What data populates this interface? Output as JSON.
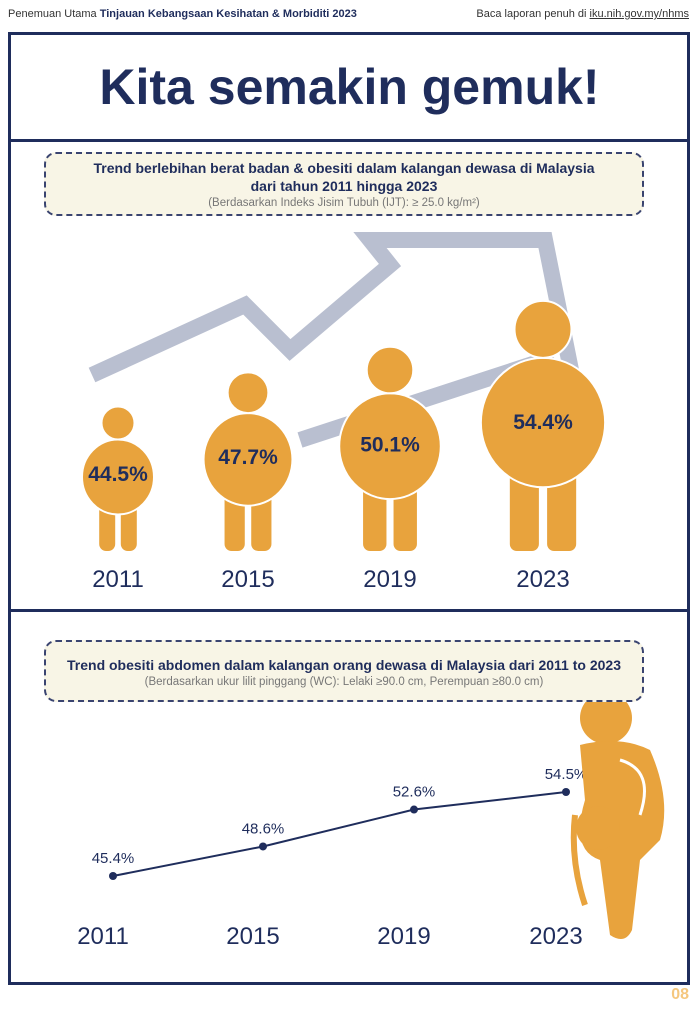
{
  "header": {
    "prefix": "Penemuan Utama",
    "report": "Tinjauan Kebangsaan Kesihatan & Morbiditi 2023",
    "read_more": "Baca laporan penuh di",
    "link": "iku.nih.gov.my/nhms"
  },
  "title": "Kita semakin gemuk!",
  "page_number": "08",
  "colors": {
    "navy": "#1f2d5c",
    "orange": "#e8a33d",
    "arrow": "#b9bfd0"
  },
  "chart_data": [
    {
      "type": "bar",
      "title": "Trend berlebihan berat badan & obesiti dalam kalangan dewasa di Malaysia dari tahun 2011 hingga 2023",
      "subtitle": "(Berdasarkan Indeks Jisim Tubuh (IJT): ≥ 25.0 kg/m²)",
      "categories": [
        "2011",
        "2015",
        "2019",
        "2023"
      ],
      "values": [
        44.5,
        47.7,
        50.1,
        54.4
      ],
      "labels": [
        "44.5%",
        "47.7%",
        "50.1%",
        "54.4%"
      ]
    },
    {
      "type": "line",
      "title": "Trend obesiti abdomen dalam kalangan orang dewasa di Malaysia dari 2011 to 2023",
      "subtitle": "(Berdasarkan ukur lilit pinggang (WC): Lelaki ≥90.0 cm, Perempuan ≥80.0 cm)",
      "categories": [
        "2011",
        "2015",
        "2019",
        "2023"
      ],
      "values": [
        45.4,
        48.6,
        52.6,
        54.5
      ],
      "labels": [
        "45.4%",
        "48.6%",
        "52.6%",
        "54.5%"
      ]
    }
  ]
}
